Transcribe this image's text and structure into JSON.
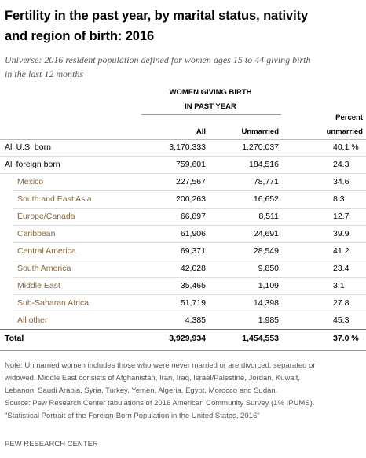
{
  "title": [
    "Fertility in the past year, by marital status, nativity",
    "and region of birth: 2016"
  ],
  "subtitle": [
    "Universe: 2016 resident population defined for women ages 15 to 44 giving birth",
    "in the last 12 months"
  ],
  "table": {
    "group_header": [
      "WOMEN GIVING BIRTH",
      "IN PAST YEAR"
    ],
    "columns": [
      [
        "All"
      ],
      [
        "Unmarried"
      ],
      [
        "Percent",
        "unmarried"
      ]
    ],
    "rows": [
      {
        "label": "All U.S. born",
        "all": "3,170,333",
        "unmarried": "1,270,037",
        "percent": "40.1 %",
        "subrows": []
      },
      {
        "label": "All foreign born",
        "all": "759,601",
        "unmarried": "184,516",
        "percent": "24.3",
        "subrows": [
          {
            "label": "Mexico",
            "all": "227,567",
            "unmarried": "78,771",
            "percent": "34.6"
          },
          {
            "label": "South and East Asia",
            "all": "200,263",
            "unmarried": "16,652",
            "percent": "8.3"
          },
          {
            "label": "Europe/Canada",
            "all": "66,897",
            "unmarried": "8,511",
            "percent": "12.7"
          },
          {
            "label": "Caribbean",
            "all": "61,906",
            "unmarried": "24,691",
            "percent": "39.9"
          },
          {
            "label": "Central America",
            "all": "69,371",
            "unmarried": "28,549",
            "percent": "41.2"
          },
          {
            "label": "South America",
            "all": "42,028",
            "unmarried": "9,850",
            "percent": "23.4"
          },
          {
            "label": "Middle East",
            "all": "35,465",
            "unmarried": "1,109",
            "percent": "3.1"
          },
          {
            "label": "Sub-Saharan Africa",
            "all": "51,719",
            "unmarried": "14,398",
            "percent": "27.8"
          },
          {
            "label": "All other",
            "all": "4,385",
            "unmarried": "1,985",
            "percent": "45.3"
          }
        ]
      }
    ],
    "total": {
      "label": "Total",
      "all": "3,929,934",
      "unmarried": "1,454,553",
      "percent": "37.0 %"
    }
  },
  "notes": [
    "Note: Unmarried women includes those who were never married or are divorced, separated or",
    "widowed. Middle East consists of Afghanistan, Iran, Iraq, Israel/Palestine, Jordan, Kuwait,",
    "Lebanon, Saudi Arabia, Syria, Turkey, Yemen, Algeria, Egypt, Morocco and Sudan.",
    "Source: Pew Research Center tabulations of 2016 American Community Survey (1% IPUMS).",
    "\"Statistical Portrait of the Foreign-Born Population in the United States, 2016\""
  ],
  "footer": "PEW RESEARCH CENTER"
}
